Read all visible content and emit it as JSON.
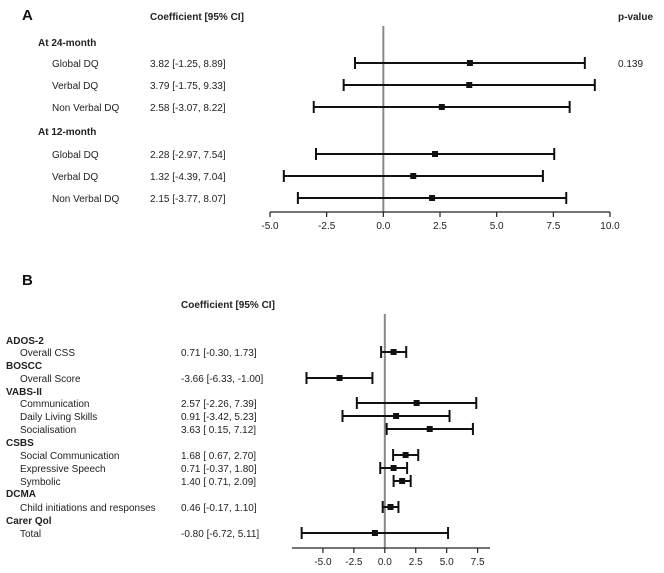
{
  "chart_data": [
    {
      "type": "forest",
      "panel_label": "A",
      "coef_header": "Coefficient [95% CI]",
      "pvalue_header": "p-value",
      "xlim": [
        -5.0,
        10.0
      ],
      "xticks": [
        "-5.0",
        "-2.5",
        "0.0",
        "2.5",
        "5.0",
        "7.5",
        "10.0"
      ],
      "groups": [
        {
          "label": "At 24-month",
          "rows": [
            {
              "label": "Global DQ",
              "ci_text": "3.82 [-1.25, 8.89]",
              "est": 3.82,
              "lo": -1.25,
              "hi": 8.89,
              "p": "0.139"
            },
            {
              "label": "Verbal DQ",
              "ci_text": "3.79 [-1.75, 9.33]",
              "est": 3.79,
              "lo": -1.75,
              "hi": 9.33,
              "p": ""
            },
            {
              "label": "Non Verbal DQ",
              "ci_text": "2.58 [-3.07, 8.22]",
              "est": 2.58,
              "lo": -3.07,
              "hi": 8.22,
              "p": ""
            }
          ]
        },
        {
          "label": "At 12-month",
          "rows": [
            {
              "label": "Global DQ",
              "ci_text": "2.28 [-2.97, 7.54]",
              "est": 2.28,
              "lo": -2.97,
              "hi": 7.54,
              "p": ""
            },
            {
              "label": "Verbal DQ",
              "ci_text": "1.32 [-4.39, 7.04]",
              "est": 1.32,
              "lo": -4.39,
              "hi": 7.04,
              "p": ""
            },
            {
              "label": "Non Verbal DQ",
              "ci_text": "2.15 [-3.77, 8.07]",
              "est": 2.15,
              "lo": -3.77,
              "hi": 8.07,
              "p": ""
            }
          ]
        }
      ]
    },
    {
      "type": "forest",
      "panel_label": "B",
      "coef_header": "Coefficient [95% CI]",
      "xlim": [
        -7.5,
        8.5
      ],
      "xticks": [
        "-5.0",
        "-2.5",
        "0.0",
        "2.5",
        "5.0",
        "7.5"
      ],
      "groups": [
        {
          "label": "ADOS-2",
          "rows": [
            {
              "label": "Overall CSS",
              "ci_text": "0.71 [-0.30,  1.73]",
              "est": 0.71,
              "lo": -0.3,
              "hi": 1.73
            }
          ]
        },
        {
          "label": "BOSCC",
          "rows": [
            {
              "label": "Overall Score",
              "ci_text": "-3.66 [-6.33, -1.00]",
              "est": -3.66,
              "lo": -6.33,
              "hi": -1.0
            }
          ]
        },
        {
          "label": "VABS-II",
          "rows": [
            {
              "label": "Communication",
              "ci_text": "2.57 [-2.26,  7.39]",
              "est": 2.57,
              "lo": -2.26,
              "hi": 7.39
            },
            {
              "label": "Daily Living Skills",
              "ci_text": "0.91 [-3.42,  5.23]",
              "est": 0.91,
              "lo": -3.42,
              "hi": 5.23
            },
            {
              "label": "Socialisation",
              "ci_text": "3.63 [ 0.15,  7.12]",
              "est": 3.63,
              "lo": 0.15,
              "hi": 7.12
            }
          ]
        },
        {
          "label": "CSBS",
          "rows": [
            {
              "label": "Social Communication",
              "ci_text": "1.68 [ 0.67,  2.70]",
              "est": 1.68,
              "lo": 0.67,
              "hi": 2.7
            },
            {
              "label": "Expressive Speech",
              "ci_text": "0.71 [-0.37,  1.80]",
              "est": 0.71,
              "lo": -0.37,
              "hi": 1.8
            },
            {
              "label": "Symbolic",
              "ci_text": "1.40 [ 0.71,  2.09]",
              "est": 1.4,
              "lo": 0.71,
              "hi": 2.09
            }
          ]
        },
        {
          "label": "DCMA",
          "rows": [
            {
              "label": "Child initiations and responses",
              "ci_text": "0.46 [-0.17,  1.10]",
              "est": 0.46,
              "lo": -0.17,
              "hi": 1.1
            }
          ]
        },
        {
          "label": "Carer Qol",
          "rows": [
            {
              "label": "Total",
              "ci_text": "-0.80 [-6.72,  5.11]",
              "est": -0.8,
              "lo": -6.72,
              "hi": 5.11
            }
          ]
        }
      ]
    }
  ]
}
